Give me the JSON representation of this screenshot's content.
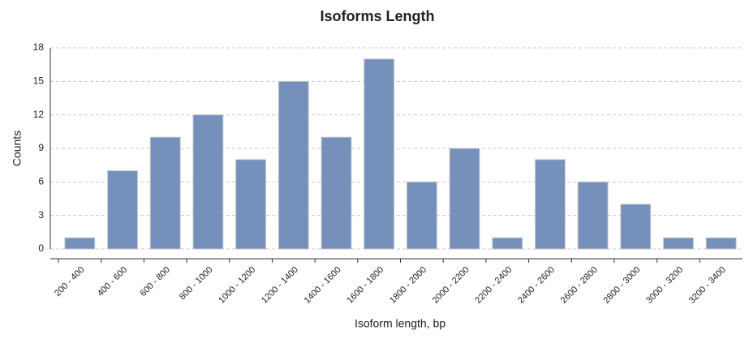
{
  "chart_data": {
    "type": "bar",
    "title": "Isoforms Length",
    "x_label": "Isoform length, bp",
    "y_label": "Counts",
    "categories": [
      "200 - 400",
      "400 - 600",
      "600 - 800",
      "800 - 1000",
      "1000 - 1200",
      "1200 - 1400",
      "1400 - 1600",
      "1600 - 1800",
      "1800 - 2000",
      "2000 - 2200",
      "2200 - 2400",
      "2400 - 2600",
      "2600 - 2800",
      "2800 - 3000",
      "3000 - 3200",
      "3200 - 3400"
    ],
    "values": [
      1,
      7,
      10,
      12,
      8,
      15,
      10,
      17,
      6,
      9,
      1,
      8,
      6,
      4,
      1,
      1
    ],
    "color": "#7490bb",
    "ylim": [
      0,
      18
    ],
    "yticks": [
      0,
      3,
      6,
      9,
      12,
      15,
      18
    ],
    "grid": true
  }
}
